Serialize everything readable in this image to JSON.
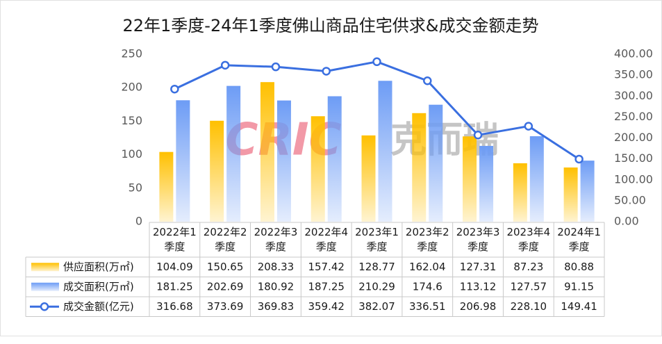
{
  "chart_data": {
    "type": "bar_line",
    "title": "22年1季度-24年1季度佛山商品住宅供求&成交金额走势",
    "watermark": [
      "CRIC",
      "克而瑞"
    ],
    "categories": [
      "2022年1季度",
      "2022年2季度",
      "2022年3季度",
      "2022年4季度",
      "2023年1季度",
      "2023年2季度",
      "2023年3季度",
      "2023年4季度",
      "2024年1季度"
    ],
    "series": [
      {
        "name": "供应面积(万㎡)",
        "type": "bar",
        "color": "#ffc000",
        "values": [
          104.09,
          150.65,
          208.33,
          157.42,
          128.77,
          162.04,
          127.31,
          87.23,
          80.88
        ]
      },
      {
        "name": "成交面积(万㎡)",
        "type": "bar",
        "color": "#6d9cf5",
        "values": [
          181.25,
          202.69,
          180.92,
          187.25,
          210.29,
          174.6,
          113.12,
          127.57,
          91.15
        ]
      },
      {
        "name": "成交金额(亿元)",
        "type": "line",
        "axis": "y2",
        "color": "#3a6fe0",
        "values": [
          316.68,
          373.69,
          369.83,
          359.42,
          382.07,
          336.51,
          206.98,
          228.1,
          149.41
        ],
        "value_labels": [
          "316.68",
          "373.69",
          "369.83",
          "359.42",
          "382.07",
          "336.51",
          "206.98",
          "228.10",
          "149.41"
        ]
      }
    ],
    "ylim": [
      0,
      250
    ],
    "yticks": [
      0,
      50,
      100,
      150,
      200,
      250
    ],
    "y2lim": [
      0,
      400
    ],
    "y2ticks": [
      {
        "value": 0,
        "label": "0.00"
      },
      {
        "value": 50,
        "label": "50.00"
      },
      {
        "value": 100,
        "label": "100.00"
      },
      {
        "value": 150,
        "label": "150.00"
      },
      {
        "value": 200,
        "label": "200.00"
      },
      {
        "value": 250,
        "label": "250.00"
      },
      {
        "value": 300,
        "label": "300.00"
      },
      {
        "value": 350,
        "label": "350.00"
      },
      {
        "value": 400,
        "label": "400.00"
      }
    ],
    "grid": false
  }
}
